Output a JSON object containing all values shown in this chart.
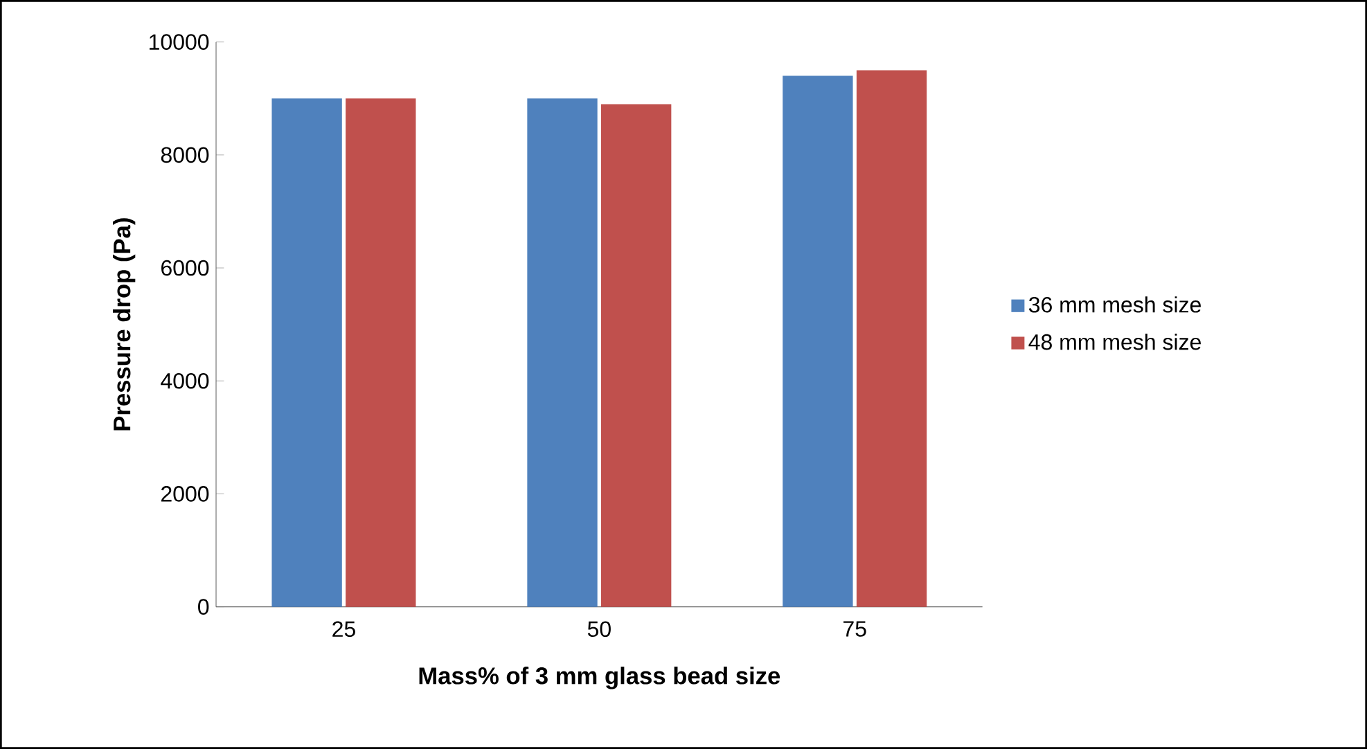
{
  "chart_data": {
    "type": "bar",
    "xlabel": "Mass% of 3 mm glass bead size",
    "ylabel": "Pressure drop (Pa)",
    "categories": [
      "25",
      "50",
      "75"
    ],
    "series": [
      {
        "name": "36 mm mesh size",
        "color": "#4f81bd",
        "values": [
          9000,
          9000,
          9400
        ]
      },
      {
        "name": "48 mm mesh size",
        "color": "#c0504d",
        "values": [
          9000,
          8900,
          9500
        ]
      }
    ],
    "ylim": [
      0,
      10000
    ],
    "yticks": [
      0,
      2000,
      4000,
      6000,
      8000,
      10000
    ],
    "grid": false,
    "legend": "right"
  }
}
